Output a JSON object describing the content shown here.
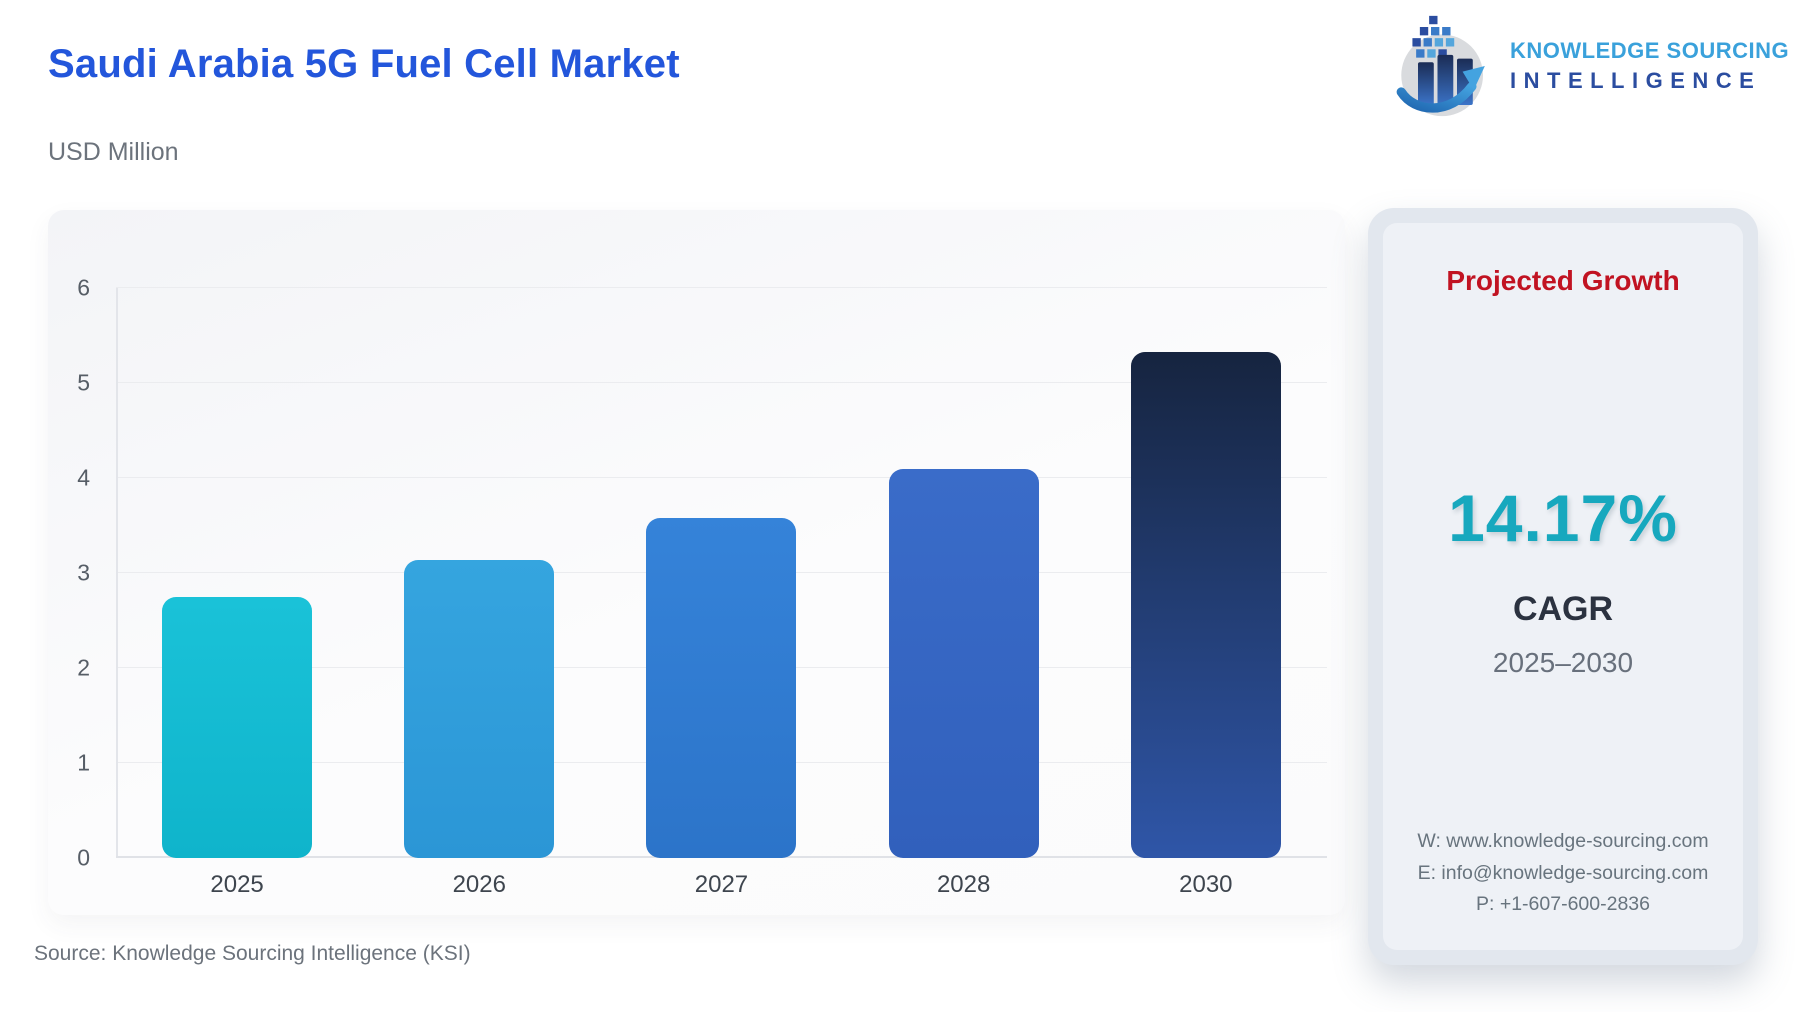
{
  "header": {
    "title": "Saudi Arabia 5G Fuel Cell Market",
    "subtitle": "USD Million",
    "title_color": "#2356DB"
  },
  "logo": {
    "line1": "KNOWLEDGE SOURCING",
    "line2": "INTELLIGENCE",
    "line1_color": "#3AA1DB",
    "line2_color": "#2B4DA0"
  },
  "chart_data": {
    "type": "bar",
    "title": "Saudi Arabia 5G Fuel Cell Market",
    "unit_label": "USD Million",
    "categories": [
      "2025",
      "2026",
      "2027",
      "2028",
      "2030"
    ],
    "values": [
      2.75,
      3.14,
      3.58,
      4.1,
      5.33
    ],
    "ylim": [
      0,
      6
    ],
    "yticks": [
      0,
      1,
      2,
      3,
      4,
      5,
      6
    ],
    "grid": true,
    "legend": "none",
    "bar_colors": [
      [
        "#1AC2D8",
        "#0FB4CB"
      ],
      [
        "#35A5DF",
        "#2B96D6"
      ],
      [
        "#3583D9",
        "#2C74C9"
      ],
      [
        "#3A6CC9",
        "#3160BC"
      ],
      [
        "#16243F",
        "#2F56A8"
      ]
    ]
  },
  "side_panel": {
    "title": "Projected Growth",
    "title_color": "#C11322",
    "cagr_value": "14.17%",
    "cagr_value_color": "#17A8BE",
    "cagr_label": "CAGR",
    "period": "2025–2030",
    "contact": {
      "website": "W: www.knowledge-sourcing.com",
      "email": "E: info@knowledge-sourcing.com",
      "phone": "P: +1-607-600-2836"
    }
  },
  "footer": {
    "source": "Source: Knowledge Sourcing Intelligence (KSI)"
  }
}
